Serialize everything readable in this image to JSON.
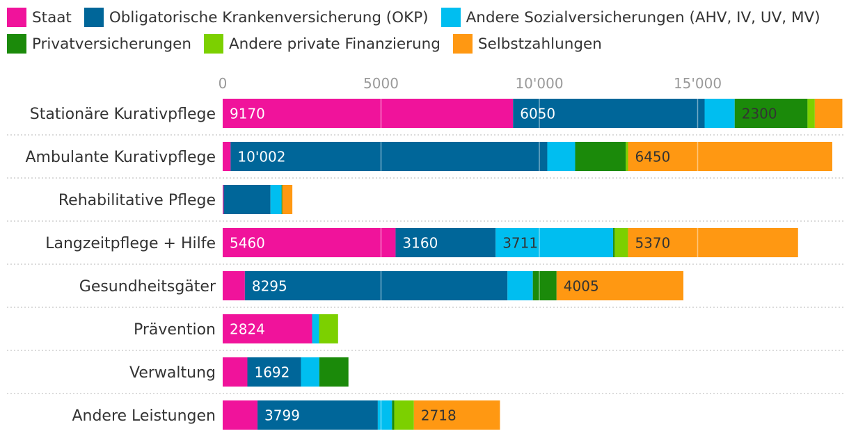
{
  "chart_data": {
    "type": "bar",
    "orientation": "horizontal",
    "stacked": true,
    "title": "",
    "xlabel": "",
    "ylabel": "",
    "xlim": [
      0,
      19500
    ],
    "ticks": [
      {
        "value": 0,
        "label": "0"
      },
      {
        "value": 5000,
        "label": "5000"
      },
      {
        "value": 10000,
        "label": "10'000"
      },
      {
        "value": 15000,
        "label": "15'000"
      }
    ],
    "grid": true,
    "legend_position": "top",
    "categories": [
      "Stationäre Kurativpflege",
      "Ambulante Kurativpflege",
      "Rehabilitative Pflege",
      "Langzeitpflege + Hilfe",
      "Gesundheitsgäter",
      "Prävention",
      "Verwaltung",
      "Andere Leistungen"
    ],
    "series": [
      {
        "name": "Staat",
        "color": "#f0139b",
        "values": [
          9170,
          250,
          30,
          5460,
          700,
          2824,
          780,
          1100
        ],
        "labels": [
          "9170",
          "",
          "",
          "5460",
          "",
          "2824",
          "",
          ""
        ]
      },
      {
        "name": "Obligatorische Krankenversicherung (OKP)",
        "color": "#006699",
        "values": [
          6050,
          10002,
          1480,
          3160,
          8295,
          0,
          1692,
          3799
        ],
        "labels": [
          "6050",
          "10'002",
          "",
          "3160",
          "8295",
          "",
          "1692",
          "3799"
        ]
      },
      {
        "name": "Andere Sozialversicherungen (AHV, IV, UV, MV)",
        "color": "#00bef0",
        "values": [
          950,
          880,
          350,
          3711,
          800,
          220,
          580,
          450
        ],
        "labels": [
          "",
          "",
          "",
          "3711",
          "",
          "",
          "",
          ""
        ]
      },
      {
        "name": "Privatversicherungen",
        "color": "#1b8a0a",
        "values": [
          2300,
          1600,
          20,
          50,
          750,
          0,
          920,
          70
        ],
        "labels": [
          "2300",
          "",
          "",
          "",
          "",
          "",
          "",
          ""
        ]
      },
      {
        "name": "Andere private Finanzierung",
        "color": "#7cd000",
        "values": [
          230,
          70,
          0,
          420,
          0,
          600,
          0,
          620
        ],
        "labels": [
          "",
          "",
          "",
          "",
          "",
          "",
          "",
          ""
        ]
      },
      {
        "name": "Selbstzahlungen",
        "color": "#ff9812",
        "values": [
          870,
          6450,
          320,
          5370,
          4005,
          0,
          0,
          2718
        ],
        "labels": [
          "",
          "6450",
          "",
          "5370",
          "4005",
          "",
          "",
          "2718"
        ]
      }
    ]
  }
}
